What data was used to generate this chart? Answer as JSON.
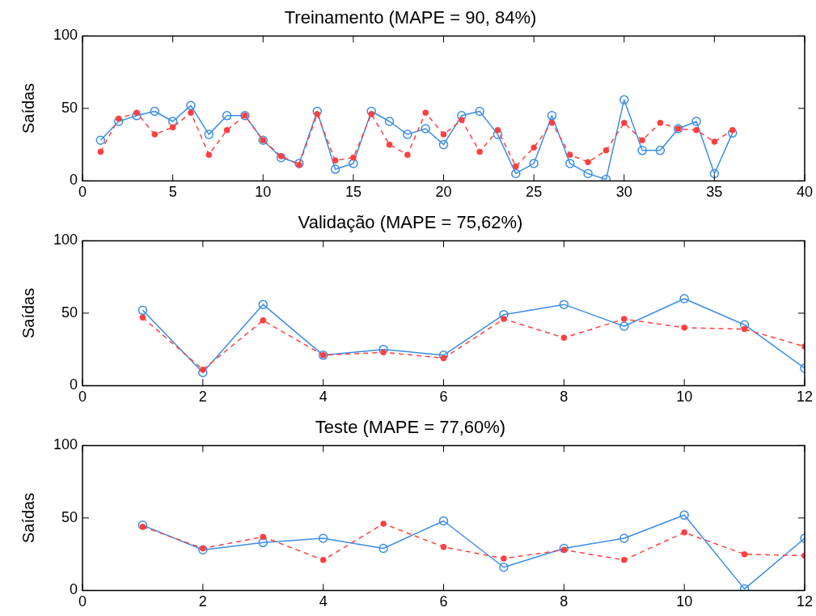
{
  "chart_data": [
    {
      "type": "line",
      "title": "Treinamento (MAPE = 90, 84%)",
      "ylabel": "Saídas",
      "x": [
        1,
        2,
        3,
        4,
        5,
        6,
        7,
        8,
        9,
        10,
        11,
        12,
        13,
        14,
        15,
        16,
        17,
        18,
        19,
        20,
        21,
        22,
        23,
        24,
        25,
        26,
        27,
        28,
        29,
        30,
        31,
        32,
        33,
        34,
        35,
        36
      ],
      "xlim": [
        0,
        40
      ],
      "xticks": [
        0,
        5,
        10,
        15,
        20,
        25,
        30,
        35,
        40
      ],
      "ylim": [
        0,
        100
      ],
      "yticks": [
        0,
        50,
        100
      ],
      "grid": false,
      "legend": false,
      "series": [
        {
          "color": "#ff4040",
          "line_style": "dashed",
          "marker": "circle",
          "values": [
            20,
            43,
            47,
            32,
            37,
            47,
            18,
            35,
            45,
            28,
            17,
            11,
            46,
            14,
            16,
            46,
            25,
            18,
            47,
            32,
            42,
            20,
            35,
            10,
            23,
            40,
            18,
            13,
            21,
            40,
            28,
            40,
            36,
            35,
            27,
            35
          ]
        },
        {
          "color": "#3a8ee6",
          "line_style": "solid",
          "marker": "circle",
          "values": [
            28,
            41,
            45,
            48,
            41,
            52,
            32,
            45,
            45,
            28,
            16,
            12,
            48,
            8,
            12,
            48,
            41,
            32,
            36,
            25,
            45,
            48,
            32,
            5,
            12,
            45,
            12,
            5,
            1,
            56,
            21,
            21,
            36,
            41,
            5,
            33
          ]
        }
      ]
    },
    {
      "type": "line",
      "title": "Validação (MAPE = 75,62%)",
      "ylabel": "Saídas",
      "x": [
        1,
        2,
        3,
        4,
        5,
        6,
        7,
        8,
        9,
        10,
        11,
        12
      ],
      "xlim": [
        0,
        12
      ],
      "xticks": [
        0,
        2,
        4,
        6,
        8,
        10,
        12
      ],
      "ylim": [
        0,
        100
      ],
      "yticks": [
        0,
        50,
        100
      ],
      "grid": false,
      "legend": false,
      "series": [
        {
          "color": "#ff4040",
          "line_style": "dashed",
          "marker": "circle",
          "values": [
            47,
            11,
            45,
            21,
            23,
            19,
            46,
            33,
            46,
            40,
            39,
            27
          ]
        },
        {
          "color": "#3a8ee6",
          "line_style": "solid",
          "marker": "circle",
          "values": [
            52,
            9,
            56,
            21,
            25,
            21,
            49,
            56,
            41,
            60,
            42,
            12
          ]
        }
      ]
    },
    {
      "type": "line",
      "title": "Teste (MAPE = 77,60%)",
      "ylabel": "Saídas",
      "x": [
        1,
        2,
        3,
        4,
        5,
        6,
        7,
        8,
        9,
        10,
        11,
        12
      ],
      "xlim": [
        0,
        12
      ],
      "xticks": [
        0,
        2,
        4,
        6,
        8,
        10,
        12
      ],
      "ylim": [
        0,
        100
      ],
      "yticks": [
        0,
        50,
        100
      ],
      "grid": false,
      "legend": false,
      "series": [
        {
          "color": "#ff4040",
          "line_style": "dashed",
          "marker": "circle",
          "values": [
            44,
            29,
            37,
            21,
            46,
            30,
            22,
            28,
            21,
            40,
            25,
            24
          ]
        },
        {
          "color": "#3a8ee6",
          "line_style": "solid",
          "marker": "circle",
          "values": [
            45,
            28,
            33,
            36,
            29,
            48,
            16,
            29,
            36,
            52,
            1,
            36
          ]
        }
      ]
    }
  ]
}
